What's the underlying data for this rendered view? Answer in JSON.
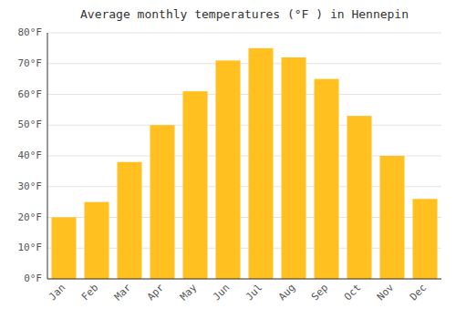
{
  "chart_data": {
    "type": "bar",
    "title": "Average monthly temperatures (°F ) in Hennepin",
    "categories": [
      "Jan",
      "Feb",
      "Mar",
      "Apr",
      "May",
      "Jun",
      "Jul",
      "Aug",
      "Sep",
      "Oct",
      "Nov",
      "Dec"
    ],
    "values": [
      20,
      25,
      38,
      50,
      61,
      71,
      75,
      72,
      65,
      53,
      40,
      26
    ],
    "color": "#FFC020",
    "ylim": [
      0,
      80
    ],
    "yticks": [
      {
        "value": 0,
        "label": "0°F"
      },
      {
        "value": 10,
        "label": "10°F"
      },
      {
        "value": 20,
        "label": "20°F"
      },
      {
        "value": 30,
        "label": "30°F"
      },
      {
        "value": 40,
        "label": "40°F"
      },
      {
        "value": 50,
        "label": "50°F"
      },
      {
        "value": 60,
        "label": "60°F"
      },
      {
        "value": 70,
        "label": "70°F"
      },
      {
        "value": 80,
        "label": "80°F"
      }
    ],
    "grid": true
  }
}
